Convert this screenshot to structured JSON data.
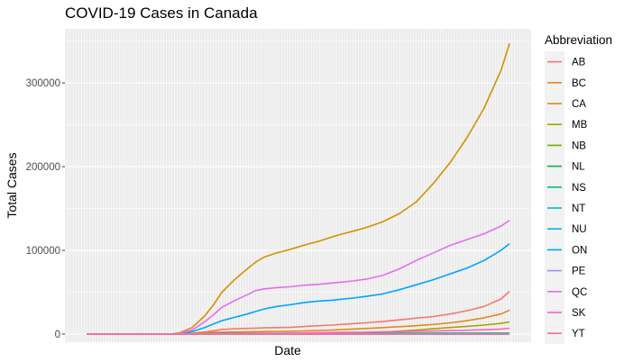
{
  "chart_data": {
    "type": "line",
    "title": "COVID-19 Cases in Canada",
    "xlabel": "Date",
    "ylabel": "Total Cases",
    "ylim": [
      0,
      355000
    ],
    "y_ticks": [
      0,
      100000,
      200000,
      300000
    ],
    "y_tick_labels": [
      "0",
      "100000",
      "200000",
      "300000"
    ],
    "x_tick_labels": [],
    "grid": true,
    "legend": {
      "title": "Abbreviation",
      "position": "right"
    },
    "x": [
      0,
      10,
      20,
      22,
      25,
      28,
      30,
      32,
      35,
      38,
      40,
      42,
      45,
      48,
      50,
      52,
      55,
      58,
      60,
      63,
      66,
      70,
      74,
      78,
      82,
      86,
      90,
      94,
      98,
      100
    ],
    "series": [
      {
        "name": "AB",
        "color": "#F8766D",
        "values": [
          0,
          0,
          0,
          200,
          1000,
          2500,
          4000,
          5500,
          6300,
          6800,
          7100,
          7400,
          7700,
          8000,
          8500,
          9200,
          10000,
          10800,
          11500,
          12500,
          13500,
          15000,
          17000,
          19000,
          21000,
          24000,
          28000,
          33000,
          42000,
          51000
        ]
      },
      {
        "name": "BC",
        "color": "#E7861B",
        "values": [
          0,
          0,
          0,
          150,
          700,
          1500,
          2000,
          2300,
          2500,
          2650,
          2800,
          3000,
          3200,
          3400,
          3600,
          3900,
          4300,
          4800,
          5300,
          6000,
          6700,
          7700,
          8800,
          10000,
          11500,
          13500,
          16000,
          19500,
          24000,
          28500
        ]
      },
      {
        "name": "CA",
        "color": "#D39200",
        "values": [
          0,
          0,
          0,
          1500,
          8000,
          22000,
          35000,
          50000,
          65000,
          78000,
          86000,
          92000,
          97000,
          101000,
          104000,
          107000,
          111000,
          116000,
          119000,
          123000,
          127000,
          134000,
          144000,
          158000,
          180000,
          205000,
          235000,
          270000,
          315000,
          347000
        ]
      },
      {
        "name": "MB",
        "color": "#A3A500",
        "values": [
          0,
          0,
          0,
          30,
          100,
          200,
          250,
          280,
          300,
          310,
          320,
          330,
          360,
          400,
          450,
          550,
          700,
          900,
          1100,
          1400,
          1800,
          2500,
          3500,
          4800,
          6300,
          7800,
          9200,
          10800,
          12800,
          14500
        ]
      },
      {
        "name": "NB",
        "color": "#6BB100",
        "values": [
          0,
          0,
          0,
          10,
          50,
          100,
          110,
          120,
          125,
          130,
          140,
          150,
          160,
          170,
          180,
          190,
          195,
          200,
          205,
          210,
          215,
          220,
          230,
          240,
          250,
          260,
          300,
          320,
          340,
          350
        ]
      },
      {
        "name": "NL",
        "color": "#00BA38",
        "values": [
          0,
          0,
          0,
          20,
          100,
          220,
          250,
          258,
          260,
          261,
          262,
          262,
          263,
          264,
          265,
          266,
          267,
          268,
          269,
          270,
          272,
          275,
          280,
          285,
          290,
          291,
          292,
          293,
          294,
          295
        ]
      },
      {
        "name": "NS",
        "color": "#00BF7D",
        "values": [
          0,
          0,
          0,
          30,
          200,
          600,
          900,
          1000,
          1050,
          1060,
          1065,
          1070,
          1075,
          1080,
          1085,
          1090,
          1095,
          1100,
          1105,
          1110,
          1115,
          1120,
          1130,
          1140,
          1150,
          1160,
          1170,
          1180,
          1190,
          1200
        ]
      },
      {
        "name": "NT",
        "color": "#00C0B8",
        "values": [
          0,
          0,
          0,
          1,
          3,
          5,
          5,
          5,
          5,
          5,
          5,
          5,
          5,
          5,
          5,
          5,
          5,
          5,
          5,
          6,
          8,
          10,
          10,
          10,
          10,
          10,
          12,
          14,
          15,
          15
        ]
      },
      {
        "name": "NU",
        "color": "#00B4EF",
        "values": [
          0,
          0,
          0,
          0,
          0,
          0,
          0,
          0,
          0,
          0,
          0,
          0,
          0,
          0,
          0,
          0,
          0,
          0,
          0,
          0,
          0,
          0,
          0,
          0,
          0,
          0,
          50,
          150,
          220,
          250
        ]
      },
      {
        "name": "ON",
        "color": "#00A5FF",
        "values": [
          0,
          0,
          0,
          500,
          3000,
          8000,
          12000,
          16000,
          20000,
          24000,
          27000,
          30000,
          33000,
          35000,
          36500,
          38000,
          39500,
          40500,
          41500,
          43000,
          45000,
          48000,
          53000,
          59000,
          65000,
          72000,
          79000,
          88000,
          100000,
          108000
        ]
      },
      {
        "name": "PE",
        "color": "#9590FF",
        "values": [
          0,
          0,
          0,
          2,
          10,
          22,
          26,
          27,
          27,
          27,
          30,
          32,
          33,
          34,
          35,
          36,
          40,
          44,
          50,
          55,
          60,
          62,
          64,
          66,
          68,
          70,
          72,
          75,
          80,
          85
        ]
      },
      {
        "name": "QC",
        "color": "#E76BF3",
        "values": [
          0,
          0,
          0,
          800,
          5000,
          15000,
          23000,
          32000,
          40000,
          47000,
          52000,
          54000,
          55500,
          56500,
          57500,
          58500,
          59500,
          61000,
          62000,
          63500,
          65500,
          70000,
          78000,
          88000,
          97000,
          106000,
          113000,
          120000,
          129000,
          136000
        ]
      },
      {
        "name": "SK",
        "color": "#FF62BC",
        "values": [
          0,
          0,
          0,
          20,
          150,
          300,
          400,
          520,
          600,
          650,
          700,
          750,
          800,
          900,
          1100,
          1400,
          1700,
          1900,
          2000,
          2100,
          2300,
          2600,
          3000,
          3400,
          3700,
          4100,
          4500,
          5200,
          6000,
          7000
        ]
      },
      {
        "name": "YT",
        "color": "#FF6C91",
        "values": [
          0,
          0,
          0,
          1,
          5,
          10,
          11,
          11,
          11,
          11,
          11,
          11,
          11,
          13,
          15,
          15,
          15,
          15,
          16,
          16,
          17,
          18,
          20,
          22,
          23,
          25,
          28,
          40,
          50,
          55
        ]
      }
    ]
  }
}
